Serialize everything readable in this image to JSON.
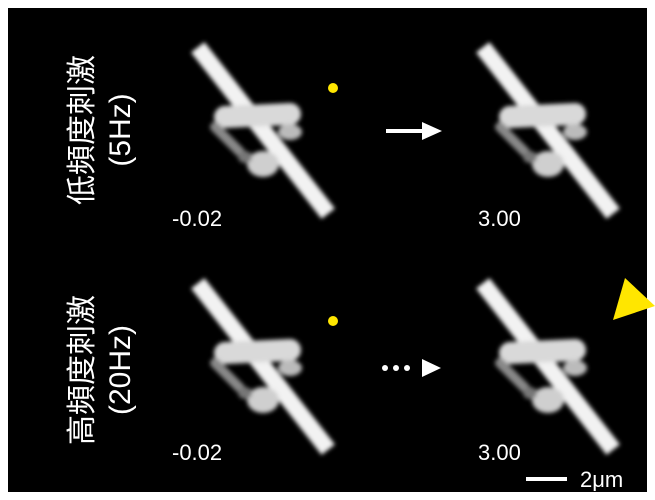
{
  "rows": [
    {
      "label": "低頻度刺激",
      "sublabel": "(5Hz)",
      "before_time": "-0.02",
      "after_time": "3.00"
    },
    {
      "label": "高頻度刺激",
      "sublabel": "(20Hz)",
      "before_time": "-0.02",
      "after_time": "3.00"
    }
  ],
  "scale_bar": "2μm"
}
